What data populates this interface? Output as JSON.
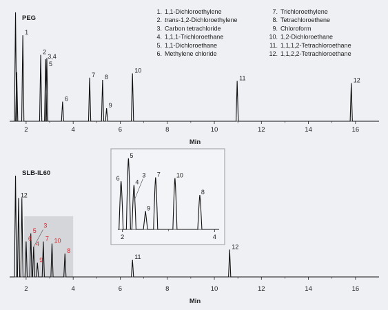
{
  "chart_data": [
    {
      "type": "line",
      "title": "PEG",
      "xlabel": "Min",
      "xlim": [
        1.3,
        17
      ],
      "x_ticks": [
        "2",
        "4",
        "6",
        "8",
        "10",
        "12",
        "14",
        "16"
      ],
      "legend": [
        {
          "num": "1.",
          "name": "1,1-Dichloroethylene"
        },
        {
          "num": "2.",
          "italic": "trans",
          "name": "-1,2-Dichloroethylene"
        },
        {
          "num": "3.",
          "name": "Carbon tetrachloride"
        },
        {
          "num": "4.",
          "name": "1,1,1-Trichloroethane"
        },
        {
          "num": "5.",
          "name": "1,1-Dichloroethane"
        },
        {
          "num": "6.",
          "name": "Methylene chloride"
        },
        {
          "num": "7.",
          "name": "Trichloroethylene"
        },
        {
          "num": "8.",
          "name": "Tetrachloroethene"
        },
        {
          "num": "9.",
          "name": "Chloroform"
        },
        {
          "num": "10.",
          "name": "1,2-Dichloroethane"
        },
        {
          "num": "11.",
          "name": "1,1,1,2-Tetrachloroethane"
        },
        {
          "num": "12.",
          "name": "1,1,2,2-Tetrachloroethane"
        }
      ],
      "peaks": [
        {
          "x": 1.55,
          "h": 1.0,
          "label": ""
        },
        {
          "x": 1.6,
          "h": 0.45,
          "label": ""
        },
        {
          "x": 1.86,
          "h": 0.79,
          "label": "1"
        },
        {
          "x": 2.62,
          "h": 0.61,
          "label": "2"
        },
        {
          "x": 2.83,
          "h": 0.57,
          "label": "3,4"
        },
        {
          "x": 2.88,
          "h": 0.58,
          "label": ""
        },
        {
          "x": 3.55,
          "h": 0.18,
          "label": "6"
        },
        {
          "x": 4.7,
          "h": 0.4,
          "label": "7"
        },
        {
          "x": 5.25,
          "h": 0.38,
          "label": "8"
        },
        {
          "x": 5.42,
          "h": 0.12,
          "label": "9"
        },
        {
          "x": 6.52,
          "h": 0.44,
          "label": "10"
        },
        {
          "x": 10.97,
          "h": 0.37,
          "label": "11"
        },
        {
          "x": 15.82,
          "h": 0.35,
          "label": "12"
        }
      ],
      "extra_labels": [
        {
          "text": "5",
          "x": 2.88,
          "h": 0.5
        }
      ]
    },
    {
      "type": "line",
      "title": "SLB-IL60",
      "xlabel": "Min",
      "xlim": [
        1.3,
        17
      ],
      "x_ticks": [
        "2",
        "4",
        "6",
        "8",
        "10",
        "12",
        "14",
        "16"
      ],
      "highlight_range": [
        1.92,
        4.0
      ],
      "peaks": [
        {
          "x": 1.55,
          "h": 1.0,
          "label": ""
        },
        {
          "x": 1.68,
          "h": 0.78,
          "label": "1"
        },
        {
          "x": 1.82,
          "h": 0.78,
          "label": "2"
        },
        {
          "x": 2.0,
          "h": 0.35,
          "label": "6",
          "red": true
        },
        {
          "x": 2.2,
          "h": 0.43,
          "label": "5",
          "red": true
        },
        {
          "x": 2.32,
          "h": 0.3,
          "label": "4",
          "red": true
        },
        {
          "x": 2.48,
          "h": 0.14,
          "label": "9",
          "red": true
        },
        {
          "x": 2.73,
          "h": 0.35,
          "label": "7",
          "red": true
        },
        {
          "x": 3.1,
          "h": 0.33,
          "label": "10",
          "red": true
        },
        {
          "x": 3.65,
          "h": 0.23,
          "label": "8",
          "red": true
        },
        {
          "x": 6.52,
          "h": 0.17,
          "label": "11"
        },
        {
          "x": 10.65,
          "h": 0.27,
          "label": "12"
        }
      ],
      "extra_labels": [
        {
          "text": "3",
          "x": 2.66,
          "h": 0.48,
          "red": true
        }
      ],
      "inset": {
        "xlim": [
          1.9,
          4.1
        ],
        "x_ticks": [
          "2",
          "4"
        ],
        "peaks": [
          {
            "x": 1.97,
            "h": 0.63,
            "label": "6"
          },
          {
            "x": 2.13,
            "h": 0.93,
            "label": "5"
          },
          {
            "x": 2.25,
            "h": 0.58,
            "label": "4"
          },
          {
            "x": 2.5,
            "h": 0.24,
            "label": "9"
          },
          {
            "x": 2.72,
            "h": 0.68,
            "label": "7"
          },
          {
            "x": 3.14,
            "h": 0.67,
            "label": "10"
          },
          {
            "x": 3.68,
            "h": 0.45,
            "label": "8"
          }
        ],
        "extra_labels": [
          {
            "text": "3",
            "x": 2.43,
            "h": 0.68
          }
        ]
      }
    }
  ]
}
